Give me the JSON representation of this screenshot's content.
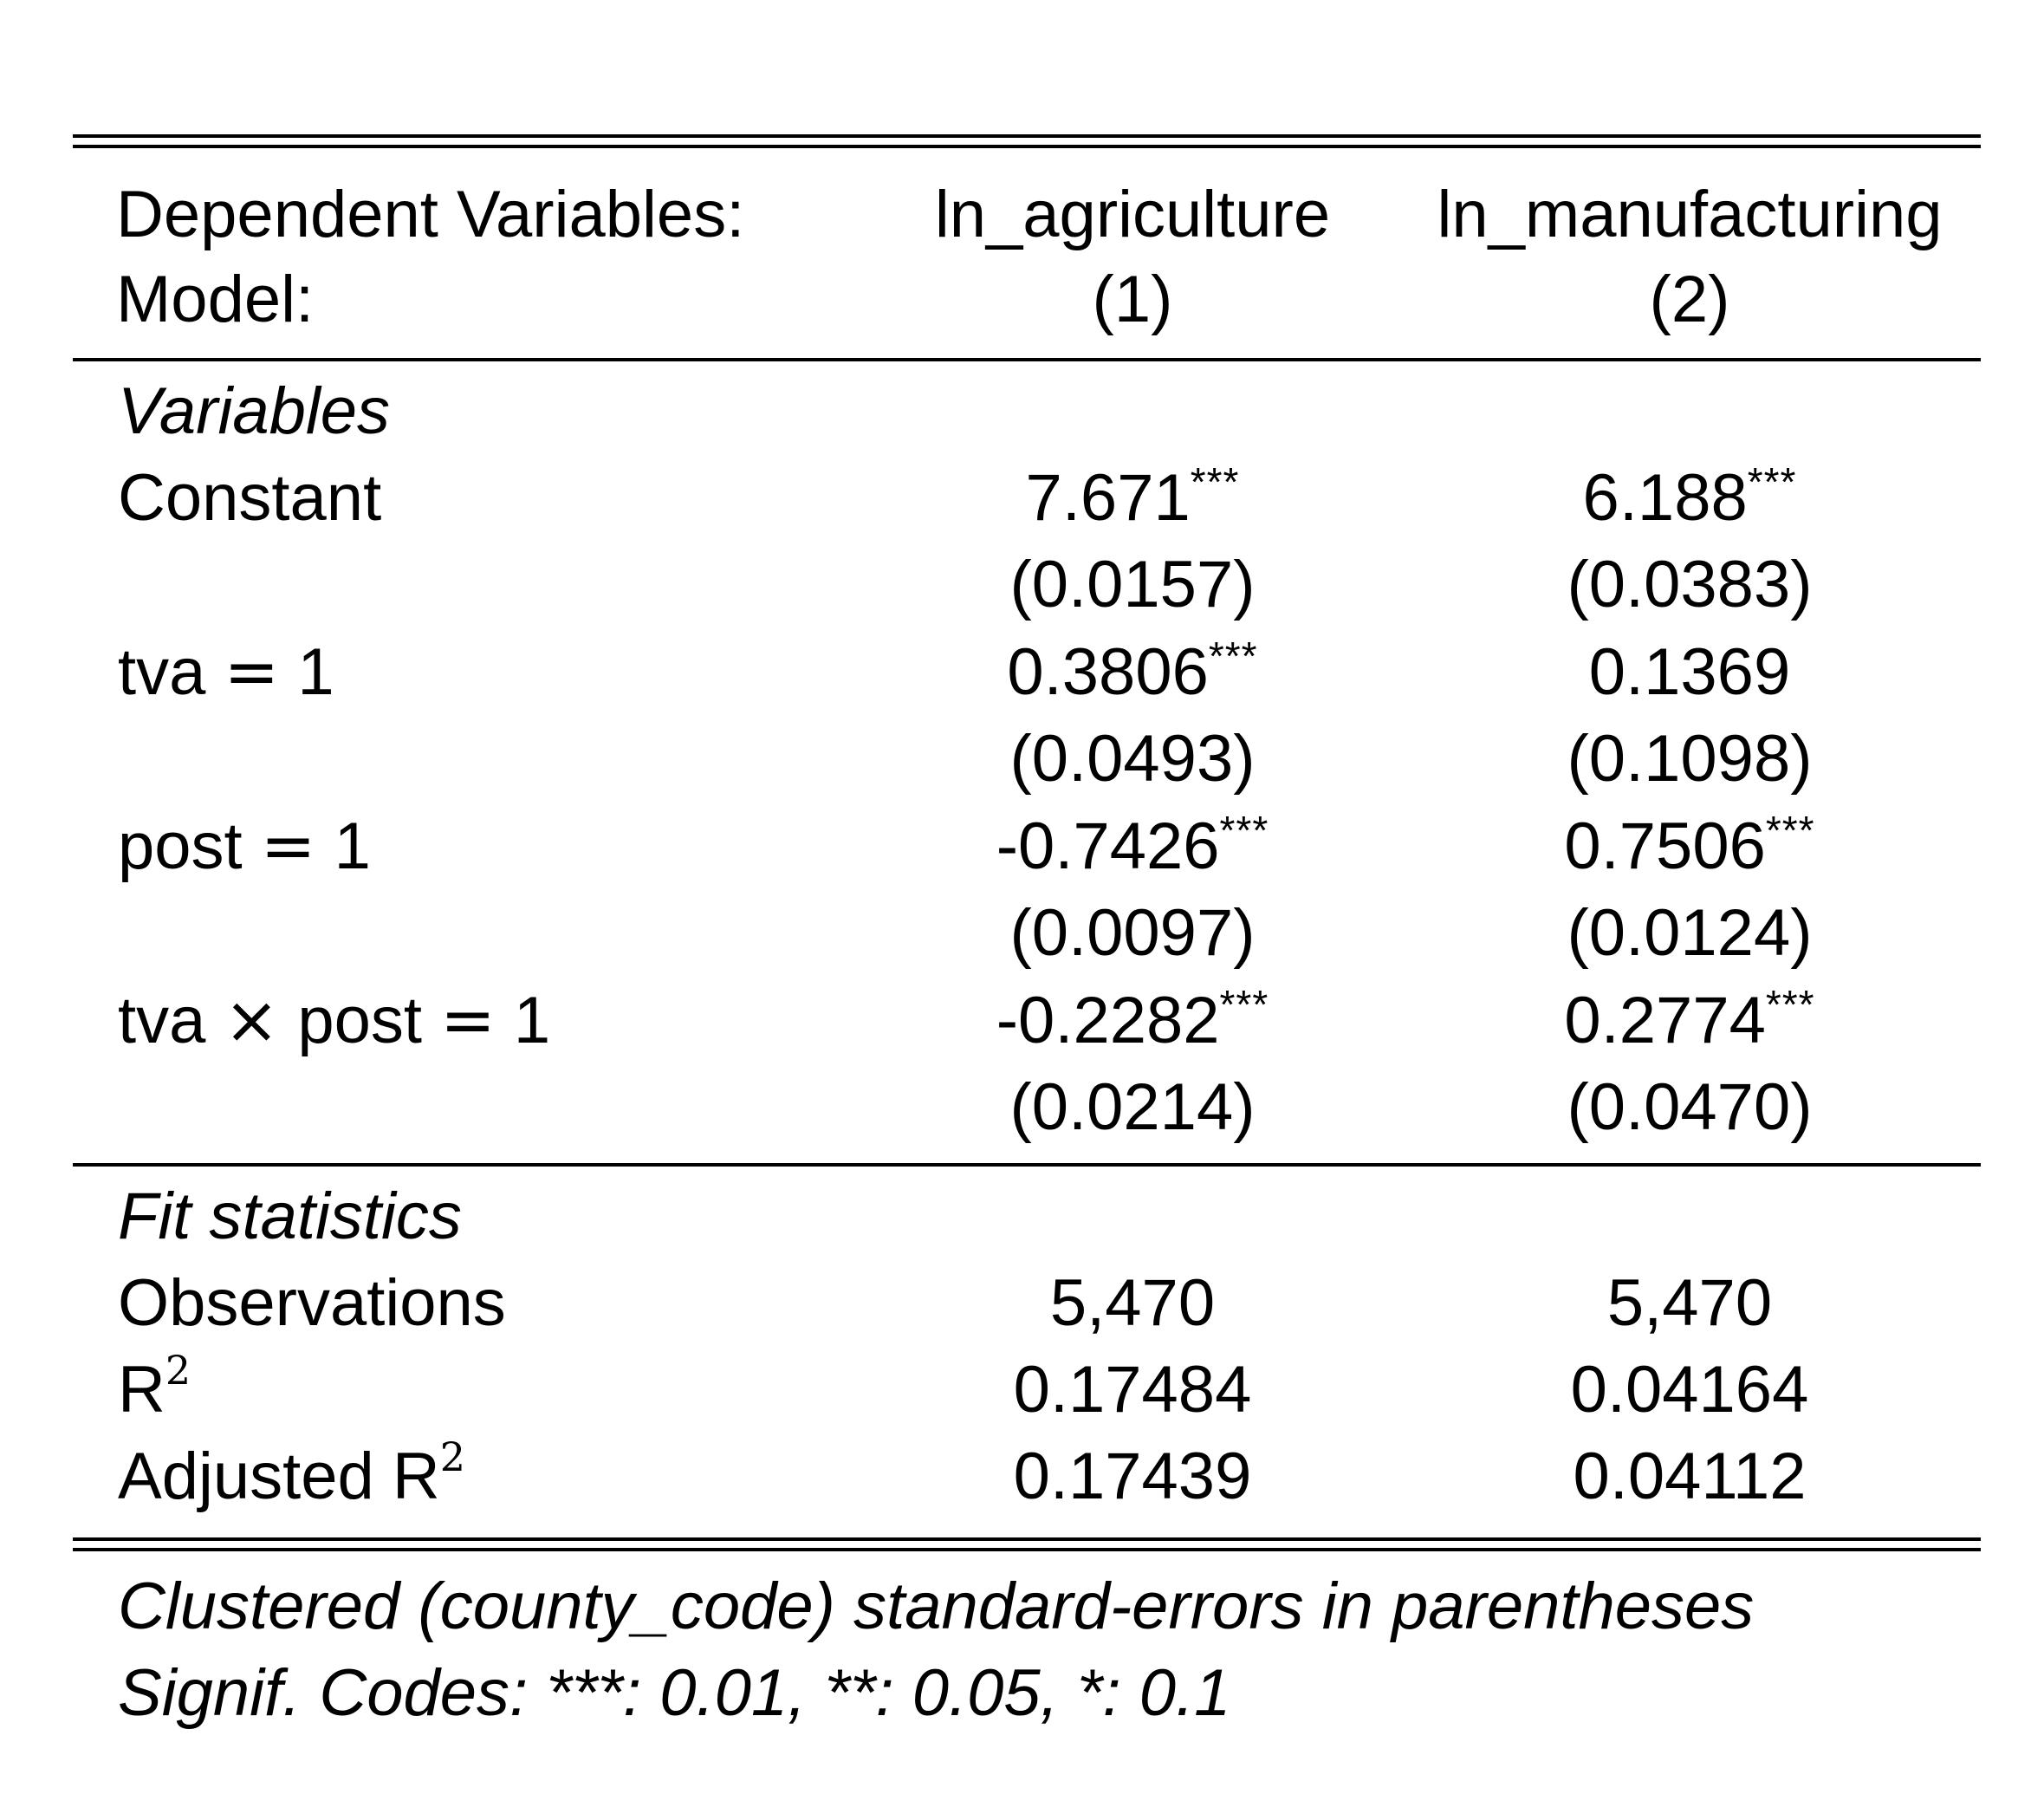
{
  "header": {
    "dependent_label": "Dependent Variables:",
    "model_label": "Model:",
    "columns": [
      {
        "dep": "ln_agriculture",
        "model": "(1)"
      },
      {
        "dep": "ln_manufacturing",
        "model": "(2)"
      }
    ]
  },
  "variables": {
    "section_label": "Variables",
    "rows": [
      {
        "label": "Constant",
        "coef": [
          "7.671",
          "6.188"
        ],
        "stars": [
          "***",
          "***"
        ],
        "se": [
          "(0.0157)",
          "(0.0383)"
        ]
      },
      {
        "label_left": "tva",
        "label_op": "=",
        "label_right": "1",
        "coef": [
          "0.3806",
          "0.1369"
        ],
        "stars": [
          "***",
          ""
        ],
        "se": [
          "(0.0493)",
          "(0.1098)"
        ]
      },
      {
        "label_left": "post",
        "label_op": "=",
        "label_right": "1",
        "coef": [
          "-0.7426",
          "0.7506"
        ],
        "stars": [
          "***",
          "***"
        ],
        "se": [
          "(0.0097)",
          "(0.0124)"
        ]
      },
      {
        "label_left": "tva",
        "label_times": "×",
        "label_mid": "post",
        "label_op": "=",
        "label_right": "1",
        "coef": [
          "-0.2282",
          "0.2774"
        ],
        "stars": [
          "***",
          "***"
        ],
        "se": [
          "(0.0214)",
          "(0.0470)"
        ]
      }
    ]
  },
  "fit": {
    "section_label": "Fit statistics",
    "observations": {
      "label": "Observations",
      "values": [
        "5,470",
        "5,470"
      ]
    },
    "r2": {
      "label": "R",
      "sup": "2",
      "values": [
        "0.17484",
        "0.04164"
      ]
    },
    "adj_r2": {
      "label": "Adjusted R",
      "sup": "2",
      "values": [
        "0.17439",
        "0.04112"
      ]
    }
  },
  "notes": {
    "line1": "Clustered (county_code) standard-errors in parentheses",
    "line2": "Signif. Codes: ***: 0.01, **: 0.05, *: 0.1"
  }
}
